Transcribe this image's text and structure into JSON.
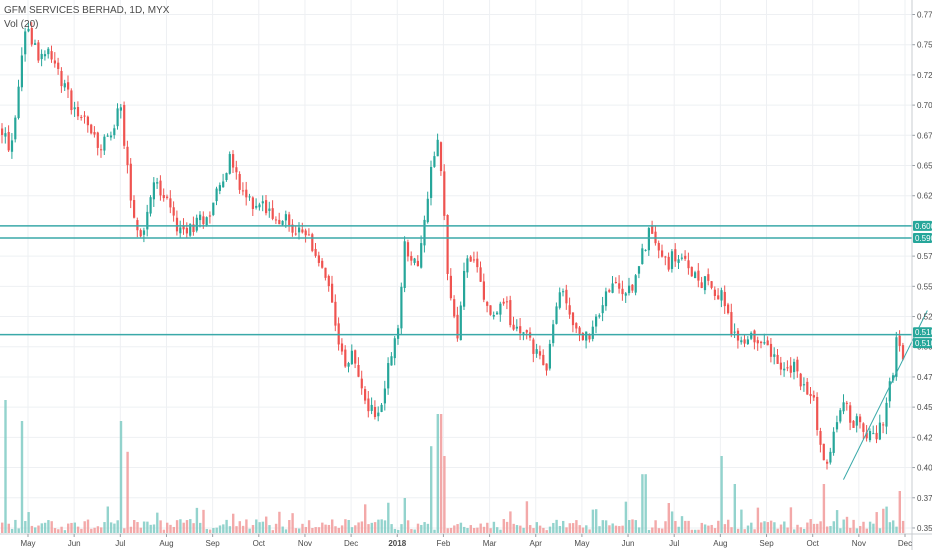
{
  "legend": {
    "title": "GFM SERVICES BERHAD, 1D, MYX",
    "volume": "Vol (20)"
  },
  "colors": {
    "up": "#26a69a",
    "down": "#ef5350",
    "volume_up": "#80cbc4",
    "volume_down": "#f19a9a",
    "hline": "#3aa9a9",
    "grid": "#eef0f3",
    "badge": "#26a69a"
  },
  "chart_data": {
    "type": "candlestick",
    "y_axis": {
      "ticks": [
        "0.775",
        "0.750",
        "0.725",
        "0.700",
        "0.675",
        "0.650",
        "0.625",
        "0.600",
        "0.575",
        "0.550",
        "0.525",
        "0.500",
        "0.475",
        "0.450",
        "0.425",
        "0.400",
        "0.375",
        "0.350"
      ],
      "range": [
        0.345,
        0.787
      ]
    },
    "x_axis": {
      "labels": [
        {
          "text": "May",
          "bold": false
        },
        {
          "text": "Jun",
          "bold": false
        },
        {
          "text": "Jul",
          "bold": false
        },
        {
          "text": "Aug",
          "bold": false
        },
        {
          "text": "Sep",
          "bold": false
        },
        {
          "text": "Oct",
          "bold": false
        },
        {
          "text": "Nov",
          "bold": false
        },
        {
          "text": "Dec",
          "bold": false
        },
        {
          "text": "2018",
          "bold": true
        },
        {
          "text": "Feb",
          "bold": false
        },
        {
          "text": "Mar",
          "bold": false
        },
        {
          "text": "Apr",
          "bold": false
        },
        {
          "text": "May",
          "bold": false
        },
        {
          "text": "Jun",
          "bold": false
        },
        {
          "text": "Jul",
          "bold": false
        },
        {
          "text": "Aug",
          "bold": false
        },
        {
          "text": "Sep",
          "bold": false
        },
        {
          "text": "Oct",
          "bold": false
        },
        {
          "text": "Nov",
          "bold": false
        },
        {
          "text": "Dec",
          "bold": false
        }
      ]
    },
    "price_path": [
      [
        0,
        0.68
      ],
      [
        10,
        0.66
      ],
      [
        24,
        0.765
      ],
      [
        34,
        0.745
      ],
      [
        48,
        0.74
      ],
      [
        60,
        0.72
      ],
      [
        72,
        0.7
      ],
      [
        86,
        0.685
      ],
      [
        98,
        0.665
      ],
      [
        110,
        0.675
      ],
      [
        120,
        0.7
      ],
      [
        128,
        0.63
      ],
      [
        134,
        0.6
      ],
      [
        140,
        0.585
      ],
      [
        146,
        0.615
      ],
      [
        152,
        0.64
      ],
      [
        160,
        0.625
      ],
      [
        170,
        0.615
      ],
      [
        180,
        0.59
      ],
      [
        190,
        0.6
      ],
      [
        200,
        0.605
      ],
      [
        210,
        0.615
      ],
      [
        220,
        0.64
      ],
      [
        230,
        0.655
      ],
      [
        240,
        0.625
      ],
      [
        252,
        0.62
      ],
      [
        262,
        0.618
      ],
      [
        272,
        0.612
      ],
      [
        284,
        0.605
      ],
      [
        296,
        0.595
      ],
      [
        306,
        0.59
      ],
      [
        316,
        0.575
      ],
      [
        328,
        0.545
      ],
      [
        336,
        0.505
      ],
      [
        344,
        0.48
      ],
      [
        352,
        0.495
      ],
      [
        360,
        0.465
      ],
      [
        370,
        0.445
      ],
      [
        380,
        0.45
      ],
      [
        388,
        0.485
      ],
      [
        396,
        0.51
      ],
      [
        404,
        0.59
      ],
      [
        410,
        0.565
      ],
      [
        418,
        0.57
      ],
      [
        426,
        0.62
      ],
      [
        432,
        0.66
      ],
      [
        438,
        0.68
      ],
      [
        442,
        0.62
      ],
      [
        448,
        0.545
      ],
      [
        456,
        0.505
      ],
      [
        464,
        0.57
      ],
      [
        470,
        0.575
      ],
      [
        478,
        0.555
      ],
      [
        486,
        0.53
      ],
      [
        494,
        0.525
      ],
      [
        504,
        0.535
      ],
      [
        516,
        0.51
      ],
      [
        526,
        0.51
      ],
      [
        536,
        0.495
      ],
      [
        546,
        0.48
      ],
      [
        554,
        0.53
      ],
      [
        562,
        0.545
      ],
      [
        572,
        0.52
      ],
      [
        580,
        0.51
      ],
      [
        590,
        0.505
      ],
      [
        600,
        0.535
      ],
      [
        610,
        0.55
      ],
      [
        620,
        0.545
      ],
      [
        630,
        0.545
      ],
      [
        640,
        0.575
      ],
      [
        648,
        0.595
      ],
      [
        656,
        0.58
      ],
      [
        666,
        0.57
      ],
      [
        676,
        0.575
      ],
      [
        686,
        0.565
      ],
      [
        696,
        0.56
      ],
      [
        706,
        0.55
      ],
      [
        716,
        0.545
      ],
      [
        724,
        0.54
      ],
      [
        732,
        0.51
      ],
      [
        742,
        0.505
      ],
      [
        752,
        0.505
      ],
      [
        762,
        0.51
      ],
      [
        772,
        0.495
      ],
      [
        782,
        0.475
      ],
      [
        792,
        0.485
      ],
      [
        802,
        0.465
      ],
      [
        812,
        0.46
      ],
      [
        820,
        0.41
      ],
      [
        828,
        0.405
      ],
      [
        836,
        0.445
      ],
      [
        844,
        0.455
      ],
      [
        852,
        0.435
      ],
      [
        860,
        0.44
      ],
      [
        868,
        0.425
      ],
      [
        876,
        0.425
      ],
      [
        884,
        0.445
      ],
      [
        890,
        0.47
      ],
      [
        896,
        0.505
      ],
      [
        900,
        0.495
      ]
    ],
    "volume_spikes": [
      {
        "x": 4,
        "v": 0.95
      },
      {
        "x": 20,
        "v": 0.8
      },
      {
        "x": 120,
        "v": 0.8
      },
      {
        "x": 126,
        "v": 0.58
      },
      {
        "x": 404,
        "v": 0.25
      },
      {
        "x": 430,
        "v": 0.62
      },
      {
        "x": 438,
        "v": 0.85
      },
      {
        "x": 442,
        "v": 0.55
      },
      {
        "x": 642,
        "v": 0.42
      },
      {
        "x": 720,
        "v": 0.55
      },
      {
        "x": 734,
        "v": 0.35
      },
      {
        "x": 822,
        "v": 0.35
      },
      {
        "x": 898,
        "v": 0.3
      }
    ],
    "horizontal_lines": [
      0.6,
      0.59,
      0.51
    ],
    "price_badges": [
      {
        "label": "0.600",
        "value": 0.6
      },
      {
        "label": "0.590",
        "value": 0.59
      },
      {
        "label": "0.510",
        "value": 0.512
      },
      {
        "label": "0.510",
        "value": 0.503
      }
    ],
    "trendline": {
      "from": {
        "x_frac": 0.905,
        "y": 0.39
      },
      "to": {
        "x_frac": 0.995,
        "y": 0.53
      }
    }
  }
}
